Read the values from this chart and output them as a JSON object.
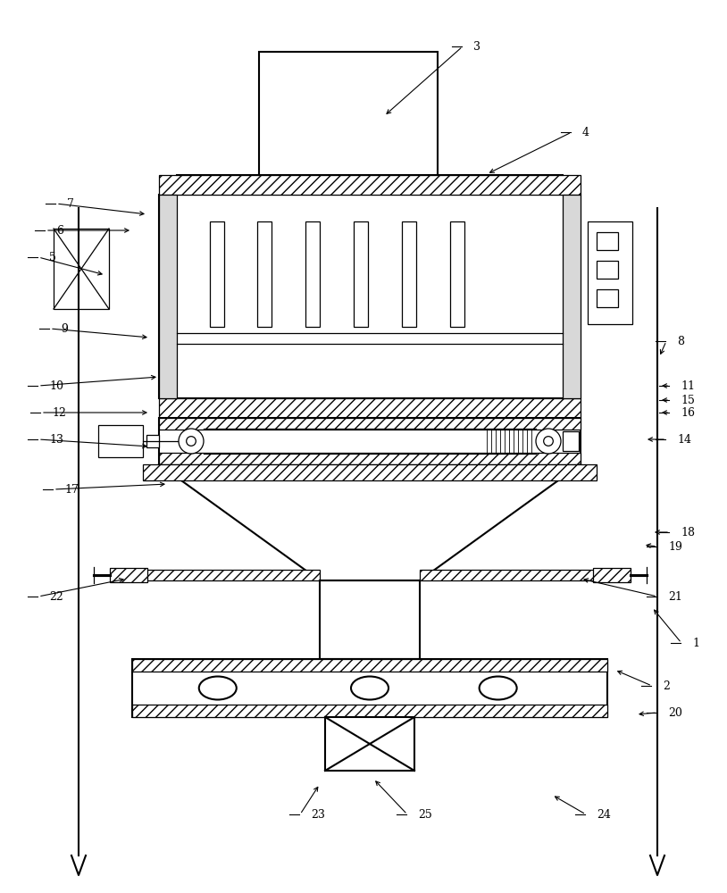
{
  "background": "#ffffff",
  "lc": "#000000",
  "lw_main": 1.5,
  "lw_thin": 0.9,
  "label_fs": 9,
  "labels": [
    [
      "1",
      775,
      720,
      730,
      680
    ],
    [
      "2",
      742,
      768,
      688,
      750
    ],
    [
      "3",
      530,
      52,
      430,
      130
    ],
    [
      "4",
      652,
      148,
      545,
      195
    ],
    [
      "5",
      55,
      288,
      118,
      308
    ],
    [
      "6",
      63,
      258,
      148,
      258
    ],
    [
      "7",
      75,
      228,
      165,
      240
    ],
    [
      "8",
      758,
      382,
      738,
      400
    ],
    [
      "9",
      68,
      368,
      168,
      378
    ],
    [
      "10",
      55,
      432,
      178,
      422
    ],
    [
      "11",
      762,
      432,
      738,
      432
    ],
    [
      "12",
      58,
      462,
      168,
      462
    ],
    [
      "13",
      55,
      492,
      168,
      500
    ],
    [
      "14",
      758,
      492,
      722,
      492
    ],
    [
      "15",
      762,
      448,
      738,
      448
    ],
    [
      "16",
      762,
      462,
      738,
      462
    ],
    [
      "17",
      72,
      548,
      188,
      542
    ],
    [
      "18",
      762,
      596,
      730,
      596
    ],
    [
      "19",
      748,
      612,
      720,
      610
    ],
    [
      "20",
      748,
      798,
      712,
      800
    ],
    [
      "21",
      748,
      668,
      650,
      648
    ],
    [
      "22",
      55,
      668,
      142,
      648
    ],
    [
      "23",
      348,
      912,
      358,
      878
    ],
    [
      "24",
      668,
      912,
      618,
      890
    ],
    [
      "25",
      468,
      912,
      418,
      872
    ]
  ]
}
